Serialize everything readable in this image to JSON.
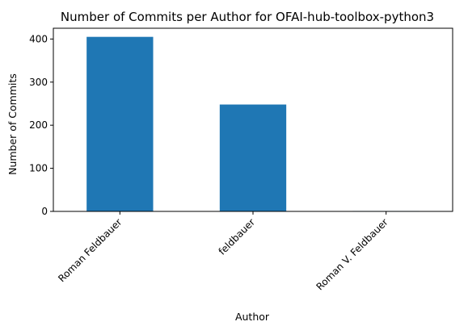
{
  "chart_data": {
    "type": "bar",
    "title": "Number of Commits per Author for OFAI-hub-toolbox-python3",
    "xlabel": "Author",
    "ylabel": "Number of Commits",
    "categories": [
      "Roman Feldbauer",
      "feldbauer",
      "Roman V. Feldbauer"
    ],
    "values": [
      405,
      248,
      1
    ],
    "ylim": [
      0,
      425
    ],
    "yticks": [
      0,
      100,
      200,
      300,
      400
    ],
    "grid": false,
    "legend": "none",
    "bar_color": "#1f77b4"
  }
}
